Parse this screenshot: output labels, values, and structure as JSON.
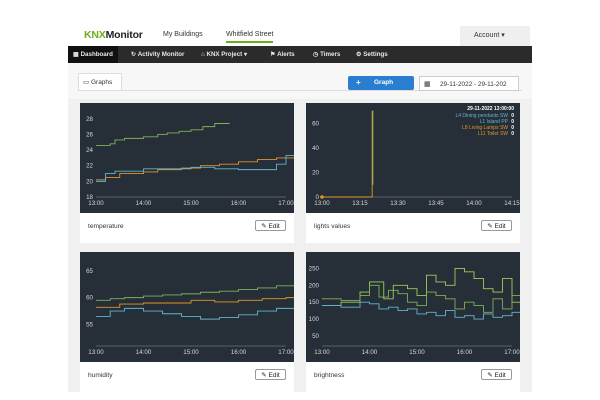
{
  "header": {
    "logo_knx": "KNX",
    "logo_rest": "Monitor",
    "links": [
      "My Buildings",
      "Whitfield Street"
    ],
    "account": "Account ▾"
  },
  "nav": {
    "items": [
      {
        "icon": "▦",
        "label": "Dashboard"
      },
      {
        "icon": "↻",
        "label": "Activity Monitor"
      },
      {
        "icon": "⌂",
        "label": "KNX Project ▾"
      },
      {
        "icon": "⚑",
        "label": "Alerts"
      },
      {
        "icon": "◷",
        "label": "Timers"
      },
      {
        "icon": "⚙",
        "label": "Settings"
      }
    ]
  },
  "toolbar": {
    "graphs_tab": "Graphs",
    "graph_button": "Graph",
    "graph_button_plus": "+",
    "date_range": "29-11-2022 - 29-11-202"
  },
  "panels": {
    "temperature": {
      "label": "temperature",
      "edit": "Edit"
    },
    "lights": {
      "label": "lights values",
      "edit": "Edit"
    },
    "humidity": {
      "label": "humidity",
      "edit": "Edit"
    },
    "brightness": {
      "label": "brightness",
      "edit": "Edit"
    }
  },
  "colors": {
    "accent_green": "#6cae1a",
    "primary_blue": "#2a7ed2",
    "chart_bg": "#262f38",
    "series_green": "#7fb05c",
    "series_orange": "#e0952c",
    "series_blue": "#62b4cf",
    "series_lightgreen": "#a0cc5a"
  },
  "chart_data": [
    {
      "type": "line",
      "yticks": [
        18,
        20,
        22,
        24,
        26,
        28
      ],
      "xticks": [
        "13:00",
        "14:00",
        "15:00",
        "16:00",
        "17:00"
      ],
      "ylim": [
        18,
        29
      ],
      "series": [
        {
          "color": "#7fb05c",
          "x": [
            0,
            0.3,
            0.4,
            0.6,
            0.8,
            1.0,
            1.3,
            1.5,
            1.75,
            2.0,
            2.25,
            2.5,
            2.8
          ],
          "y": [
            24.6,
            24.8,
            25.3,
            25.5,
            25.5,
            25.7,
            26.0,
            26.2,
            26.4,
            26.6,
            27.0,
            27.4,
            27.5
          ]
        },
        {
          "color": "#e0952c",
          "x": [
            0,
            0.2,
            0.5,
            1.0,
            1.3,
            1.8,
            2.2,
            2.6,
            3.0,
            3.4,
            3.8,
            4.2,
            4.6
          ],
          "y": [
            20.2,
            20.5,
            21.0,
            21.2,
            21.5,
            21.7,
            22.0,
            22.2,
            22.5,
            22.8,
            23.0,
            23.2,
            23.4
          ]
        },
        {
          "color": "#62b4cf",
          "x": [
            0,
            0.2,
            0.4,
            1.0,
            1.5,
            2.0,
            2.5,
            3.0,
            3.6,
            3.8,
            4.0,
            4.6
          ],
          "y": [
            20.0,
            21.0,
            21.3,
            21.6,
            21.6,
            21.8,
            21.6,
            21.5,
            21.5,
            22.2,
            23.3,
            23.3
          ]
        }
      ]
    },
    {
      "type": "line",
      "yticks": [
        0,
        20,
        40,
        60
      ],
      "xticks": [
        "13:00",
        "13:15",
        "13:30",
        "13:45",
        "14:00",
        "14:15"
      ],
      "ylim": [
        0,
        70
      ],
      "tooltip": {
        "time": "29-11-2022 13:00:00",
        "rows": [
          {
            "label": "L4 Dining pendants SW",
            "value": "0",
            "color": "#62b4cf"
          },
          {
            "label": "L1 Island PP",
            "value": "0",
            "color": "#62b4cf"
          },
          {
            "label": "L8 Living Lamps SW",
            "value": "0",
            "color": "#e0952c"
          },
          {
            "label": "L11 Toilet SW",
            "value": "0",
            "color": "#e0952c"
          }
        ]
      },
      "series": [
        {
          "color": "#e0952c",
          "x": [
            0,
            1.32,
            1.32
          ],
          "y": [
            0,
            0,
            70
          ]
        },
        {
          "color": "#7fb05c",
          "x": [
            1.32,
            1.34
          ],
          "y": [
            70,
            10
          ]
        }
      ]
    },
    {
      "type": "line",
      "yticks": [
        55,
        60,
        65
      ],
      "xticks": [
        "13:00",
        "14:00",
        "15:00",
        "16:00",
        "17:00"
      ],
      "ylim": [
        51,
        67
      ],
      "series": [
        {
          "color": "#7fb05c",
          "x": [
            0,
            0.3,
            0.6,
            1.0,
            1.4,
            1.8,
            2.2,
            2.6,
            3.0,
            3.4,
            3.8,
            4.2,
            4.5,
            4.6
          ],
          "y": [
            59.5,
            59.8,
            60.0,
            60.3,
            60.5,
            60.7,
            61.0,
            61.2,
            61.5,
            61.8,
            62.2,
            62.5,
            62.8,
            63.0
          ]
        },
        {
          "color": "#e0952c",
          "x": [
            0,
            0.5,
            1.0,
            1.5,
            2.0,
            2.5,
            3.0,
            3.5,
            4.0,
            4.6
          ],
          "y": [
            58.2,
            58.8,
            59.0,
            59.0,
            59.5,
            59.2,
            59.5,
            59.8,
            60.0,
            60.2
          ]
        },
        {
          "color": "#62b4cf",
          "x": [
            0,
            0.3,
            0.6,
            1.0,
            1.4,
            1.8,
            2.2,
            2.6,
            3.0,
            3.4,
            3.8,
            4.2,
            4.6
          ],
          "y": [
            56.5,
            57.5,
            58.0,
            57.5,
            57.0,
            56.5,
            56.0,
            56.3,
            56.8,
            57.5,
            58.0,
            57.0,
            58.0
          ]
        }
      ]
    },
    {
      "type": "line",
      "yticks": [
        50,
        100,
        150,
        200,
        250
      ],
      "xticks": [
        "13:00",
        "14:00",
        "15:00",
        "16:00",
        "17:00"
      ],
      "ylim": [
        20,
        275
      ],
      "series": [
        {
          "color": "#a0cc5a",
          "x": [
            0,
            0.4,
            0.8,
            1.0,
            1.3,
            1.5,
            1.8,
            2.0,
            2.2,
            2.4,
            2.6,
            2.8,
            3.0,
            3.2,
            3.4,
            3.6,
            3.8,
            4.0,
            4.2,
            4.4,
            4.6
          ],
          "y": [
            140,
            150,
            180,
            210,
            160,
            200,
            190,
            170,
            230,
            210,
            200,
            250,
            240,
            220,
            190,
            180,
            220,
            150,
            200,
            180,
            80
          ]
        },
        {
          "color": "#7fb05c",
          "x": [
            0,
            0.4,
            0.8,
            1.0,
            1.2,
            1.4,
            1.6,
            1.8,
            2.0,
            2.2,
            2.4,
            2.6,
            2.8,
            3.0,
            3.2,
            3.4,
            3.6,
            3.8,
            4.0,
            4.2,
            4.4,
            4.6
          ],
          "y": [
            160,
            155,
            170,
            200,
            165,
            185,
            175,
            150,
            140,
            180,
            170,
            160,
            130,
            150,
            140,
            120,
            160,
            130,
            170,
            100,
            60,
            40
          ]
        },
        {
          "color": "#62b4cf",
          "x": [
            0,
            0.4,
            0.8,
            1.0,
            1.2,
            1.4,
            1.6,
            1.8,
            2.0,
            2.2,
            2.4,
            2.6,
            2.8,
            3.0,
            3.2,
            3.4,
            3.6,
            3.8,
            4.0,
            4.2,
            4.4,
            4.6
          ],
          "y": [
            140,
            135,
            150,
            145,
            130,
            135,
            125,
            130,
            115,
            120,
            110,
            125,
            105,
            110,
            100,
            115,
            105,
            110,
            120,
            60,
            40,
            40
          ]
        }
      ]
    }
  ]
}
